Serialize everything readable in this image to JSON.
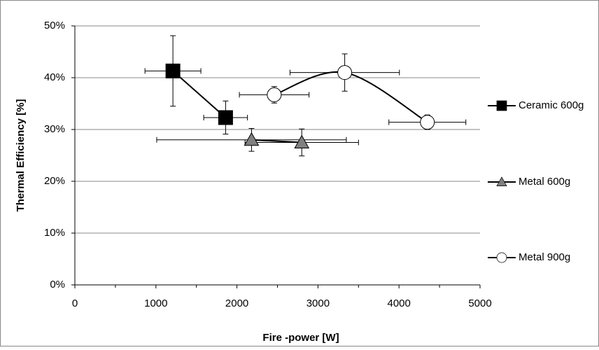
{
  "chart_data": {
    "type": "scatter",
    "smooth_lines": true,
    "x_label": "Fire -power [W]",
    "y_label": "Thermal Efficiency [%]",
    "xlim": [
      0,
      5000
    ],
    "xticks": [
      0,
      1000,
      2000,
      3000,
      4000,
      5000
    ],
    "ylim": [
      0,
      50
    ],
    "yticks": [
      {
        "value": 0,
        "label": "0%"
      },
      {
        "value": 10,
        "label": "10%"
      },
      {
        "value": 20,
        "label": "20%"
      },
      {
        "value": 30,
        "label": "30%"
      },
      {
        "value": 40,
        "label": "40%"
      },
      {
        "value": 50,
        "label": "50%"
      }
    ],
    "grid": true,
    "legend": "right",
    "series": [
      {
        "name": "Ceramic 600g",
        "color": "#000000",
        "marker": "square",
        "x": [
          1210,
          1860
        ],
        "values": [
          41.3,
          32.3
        ],
        "xerr": [
          345,
          270
        ],
        "yerr": [
          6.8,
          3.2
        ]
      },
      {
        "name": "Metal 600g",
        "color": "#808080",
        "marker": "triangle",
        "x": [
          2180,
          2800
        ],
        "values": [
          28.0,
          27.5
        ],
        "xerr": [
          1170,
          700
        ],
        "yerr": [
          2.2,
          2.6
        ]
      },
      {
        "name": "Metal 900g",
        "color": "#ffffff",
        "marker": "circle",
        "x": [
          2460,
          3330,
          4350
        ],
        "values": [
          36.7,
          41.0,
          31.4
        ],
        "xerr": [
          430,
          675,
          475
        ],
        "yerr": [
          1.6,
          3.6,
          1.4
        ]
      }
    ]
  }
}
